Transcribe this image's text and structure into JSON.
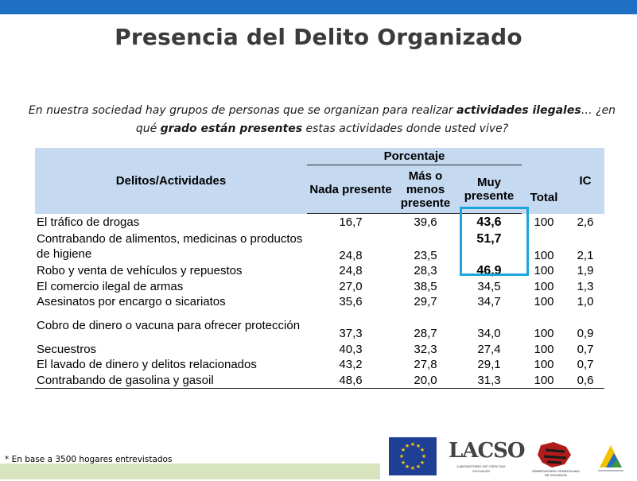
{
  "title": "Presencia del Delito Organizado",
  "question": {
    "p1": "En nuestra sociedad hay grupos de personas que se organizan para realizar ",
    "b1": "actividades ilegales",
    "p2": "… ¿en qué ",
    "b2": "grado están presentes",
    "p3": " estas actividades donde usted vive?"
  },
  "table": {
    "col_activity": "Delitos/Actividades",
    "col_group": "Porcentaje",
    "col_nada": "Nada presente",
    "col_mas": "Más o menos presente",
    "col_muy": "Muy presente",
    "col_total": "Total",
    "col_ic": "IC",
    "rows": [
      {
        "activity": "El tráfico de drogas",
        "nada": "16,7",
        "mas": "39,6",
        "muy": "43,6",
        "total": "100",
        "ic": "2,6"
      },
      {
        "activity": "Contrabando de alimentos, medicinas o productos de higiene",
        "nada": "24,8",
        "mas": "23,5",
        "muy": "51,7",
        "total": "100",
        "ic": "2,1"
      },
      {
        "activity": "Robo y venta de vehículos y repuestos",
        "nada": "24,8",
        "mas": "28,3",
        "muy": "46,9",
        "total": "100",
        "ic": "1,9"
      },
      {
        "activity": "El comercio ilegal de armas",
        "nada": "27,0",
        "mas": "38,5",
        "muy": "34,5",
        "total": "100",
        "ic": "1,3"
      },
      {
        "activity": "Asesinatos por encargo o sicariatos",
        "nada": "35,6",
        "mas": "29,7",
        "muy": "34,7",
        "total": "100",
        "ic": "1,0"
      },
      {
        "activity": "Cobro de dinero o vacuna para ofrecer protección",
        "nada": "37,3",
        "mas": "28,7",
        "muy": "34,0",
        "total": "100",
        "ic": "0,9"
      },
      {
        "activity": "Secuestros",
        "nada": "40,3",
        "mas": "32,3",
        "muy": "27,4",
        "total": "100",
        "ic": "0,7"
      },
      {
        "activity": "El lavado de dinero y delitos relacionados",
        "nada": "43,2",
        "mas": "27,8",
        "muy": "29,1",
        "total": "100",
        "ic": "0,7"
      },
      {
        "activity": "Contrabando de gasolina y gasoil",
        "nada": "48,6",
        "mas": "20,0",
        "muy": "31,3",
        "total": "100",
        "ic": "0,6"
      }
    ]
  },
  "footnote": "* En base a 3500 hogares entrevistados",
  "logos": {
    "lacso": "LACSO",
    "lacso_sub": "LABORATORIO DE CIENCIAS SOCIALES",
    "ovv_sub": "OBSERVATORIO VENEZOLANO DE VIOLENCIA"
  },
  "colors": {
    "topbar": "#1f6fc5",
    "header_bg": "#c5d9f1",
    "highlight": "#1ca4dc",
    "footnote_bg": "#d7e4bd"
  }
}
